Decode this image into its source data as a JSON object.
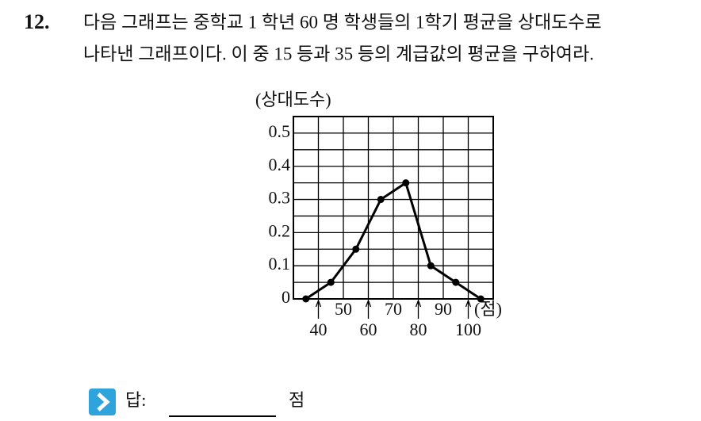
{
  "question": {
    "number": "12.",
    "lines": [
      "다음 그래프는 중학교 1 학년 60 명 학생들의 1학기 평균을 상대도수로",
      "나타낸 그래프이다. 이 중 15 등과 35 등의 계급값의 평균을 구하여라."
    ]
  },
  "chart_data": {
    "type": "line",
    "y_label": "(상대도수)",
    "x_unit": "(점)",
    "x": [
      35,
      45,
      55,
      65,
      75,
      85,
      95,
      105
    ],
    "values": [
      0,
      0.05,
      0.15,
      0.3,
      0.35,
      0.1,
      0.05,
      0
    ],
    "color": "#000000",
    "xlim": [
      30,
      110
    ],
    "ylim": [
      0,
      0.55
    ],
    "xticks": [
      40,
      50,
      60,
      70,
      80,
      90,
      100
    ],
    "yticks": [
      0,
      0.1,
      0.2,
      0.3,
      0.4,
      0.5
    ],
    "xgrid": [
      40,
      50,
      60,
      70,
      80,
      90,
      100
    ],
    "ygrid": [
      0.05,
      0.1,
      0.15,
      0.2,
      0.25,
      0.3,
      0.35,
      0.4,
      0.45,
      0.5
    ]
  },
  "answer": {
    "label": "답:",
    "unit": "점"
  }
}
